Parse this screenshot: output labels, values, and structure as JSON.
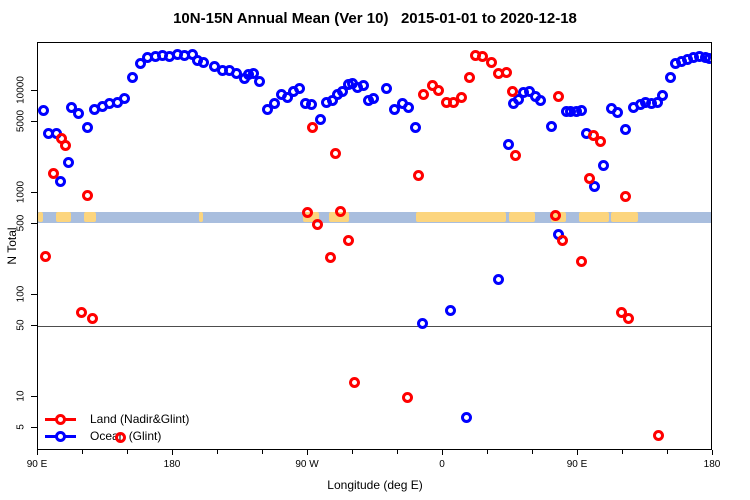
{
  "title": "10N-15N Annual Mean (Ver 10)   2015-01-01 to 2020-12-18",
  "chart_data": {
    "type": "scatter",
    "title": "10N-15N Annual Mean (Ver 10)   2015-01-01 to 2020-12-18",
    "x_axis": {
      "label": "Longitude (deg E)",
      "range_deg": [
        90,
        540
      ],
      "major_ticks": [
        {
          "deg": 90,
          "label": "90 E"
        },
        {
          "deg": 180,
          "label": "180"
        },
        {
          "deg": 270,
          "label": "90 W"
        },
        {
          "deg": 360,
          "label": "0"
        },
        {
          "deg": 450,
          "label": "90 E"
        },
        {
          "deg": 540,
          "label": "180"
        }
      ],
      "minor_tick_step_deg": 30
    },
    "y_axis": {
      "label": "N Total",
      "scale": "log",
      "ticks": [
        5,
        10,
        50,
        100,
        500,
        1000,
        5000,
        10000
      ],
      "range": [
        3,
        29500
      ]
    },
    "reference_line_y": 50,
    "map_band": {
      "description": "10N-15N latitude map strip",
      "value_range": [
        510,
        655
      ],
      "ocean_color": "#a9bede",
      "land_color": "#fcd57e",
      "land_patches_deg": [
        [
          90,
          93.3
        ],
        [
          102,
          112
        ],
        [
          120.7,
          128.7
        ],
        [
          197.3,
          200
        ],
        [
          266.7,
          277.3
        ],
        [
          284,
          297.3
        ],
        [
          342,
          402
        ],
        [
          404,
          421
        ],
        [
          432,
          442
        ],
        [
          450.7,
          470.7
        ],
        [
          472,
          490
        ]
      ]
    },
    "legend_position": "bottom-left",
    "series": [
      {
        "name": "Land (Nadir&Glint)",
        "color": "#ff0000",
        "points": [
          [
            94.7,
            240
          ],
          [
            100.2,
            1540
          ],
          [
            105.5,
            3450
          ],
          [
            108.5,
            2940
          ],
          [
            122.9,
            950
          ],
          [
            118.9,
            67
          ],
          [
            126.2,
            59
          ],
          [
            145.1,
            4
          ],
          [
            273.1,
            4400
          ],
          [
            288.2,
            2440
          ],
          [
            269.5,
            640
          ],
          [
            276.2,
            494
          ],
          [
            291.8,
            662
          ],
          [
            297.1,
            346
          ],
          [
            285.1,
            235
          ],
          [
            300.7,
            14
          ],
          [
            336.5,
            10
          ],
          [
            343.8,
            1500
          ],
          [
            347.1,
            9300
          ],
          [
            353.1,
            11400
          ],
          [
            357.1,
            10200
          ],
          [
            362.5,
            7800
          ],
          [
            367.1,
            7800
          ],
          [
            372,
            8600
          ],
          [
            377.5,
            13500
          ],
          [
            381.5,
            22500
          ],
          [
            386,
            22000
          ],
          [
            392,
            19000
          ],
          [
            397.1,
            15000
          ],
          [
            402,
            15300
          ],
          [
            406,
            9800
          ],
          [
            408.4,
            2350
          ],
          [
            434.7,
            605
          ],
          [
            437.1,
            8800
          ],
          [
            439.8,
            340
          ],
          [
            452.5,
            215
          ],
          [
            457.9,
            1390
          ],
          [
            460.4,
            3700
          ],
          [
            465.3,
            3200
          ],
          [
            478.7,
            67
          ],
          [
            481.5,
            930
          ],
          [
            483.5,
            59
          ],
          [
            503.8,
            4.2
          ]
        ]
      },
      {
        "name": "Ocean (Glint)",
        "color": "#0000ff",
        "points": [
          [
            93.5,
            6400
          ],
          [
            97.3,
            3850
          ],
          [
            102.2,
            3850
          ],
          [
            105.1,
            1300
          ],
          [
            110.2,
            1980
          ],
          [
            112.5,
            6900
          ],
          [
            116.9,
            6000
          ],
          [
            123.3,
            4400
          ],
          [
            127.8,
            6600
          ],
          [
            132.9,
            7100
          ],
          [
            137.8,
            7500
          ],
          [
            142.7,
            7800
          ],
          [
            147.8,
            8500
          ],
          [
            153.3,
            13500
          ],
          [
            158.2,
            18500
          ],
          [
            163.3,
            21500
          ],
          [
            168.2,
            22000
          ],
          [
            172.9,
            22500
          ],
          [
            177.8,
            22000
          ],
          [
            182.7,
            23000
          ],
          [
            187.8,
            22300
          ],
          [
            192.7,
            23000
          ],
          [
            196.2,
            20000
          ],
          [
            200.4,
            19000
          ],
          [
            207.5,
            17200
          ],
          [
            212.7,
            15700
          ],
          [
            217.5,
            15700
          ],
          [
            222.5,
            15000
          ],
          [
            227.5,
            13300
          ],
          [
            230.5,
            14600
          ],
          [
            233.8,
            14800
          ],
          [
            237.5,
            12500
          ],
          [
            242.7,
            6600
          ],
          [
            247.5,
            7500
          ],
          [
            252,
            9300
          ],
          [
            256,
            8600
          ],
          [
            260.4,
            9800
          ],
          [
            264.2,
            10500
          ],
          [
            268,
            7500
          ],
          [
            272,
            7400
          ],
          [
            278.2,
            5300
          ],
          [
            282,
            7800
          ],
          [
            286,
            8100
          ],
          [
            289.8,
            9300
          ],
          [
            293.1,
            10000
          ],
          [
            297.1,
            11500
          ],
          [
            299.8,
            11900
          ],
          [
            303.1,
            10800
          ],
          [
            306.9,
            11200
          ],
          [
            310.4,
            8100
          ],
          [
            313.8,
            8500
          ],
          [
            322,
            10500
          ],
          [
            327.5,
            6600
          ],
          [
            332.7,
            7500
          ],
          [
            337.1,
            6900
          ],
          [
            341.5,
            4400
          ],
          [
            346.2,
            53
          ],
          [
            364.7,
            71
          ],
          [
            375.5,
            6.4
          ],
          [
            396.9,
            142
          ],
          [
            403.8,
            3000
          ],
          [
            407.1,
            7500
          ],
          [
            410.5,
            8300
          ],
          [
            413.8,
            9700
          ],
          [
            417.5,
            9800
          ],
          [
            421.5,
            8800
          ],
          [
            425.3,
            8000
          ],
          [
            432,
            4500
          ],
          [
            437.3,
            390
          ],
          [
            442,
            6300
          ],
          [
            445.3,
            6300
          ],
          [
            448.7,
            6300
          ],
          [
            452,
            6400
          ],
          [
            455.8,
            3800
          ],
          [
            461.3,
            1170
          ],
          [
            466.9,
            1870
          ],
          [
            472,
            6800
          ],
          [
            476.5,
            6100
          ],
          [
            481.5,
            4200
          ],
          [
            487.1,
            6900
          ],
          [
            491.5,
            7300
          ],
          [
            495.3,
            7700
          ],
          [
            499.3,
            7500
          ],
          [
            502.7,
            7700
          ],
          [
            506.5,
            9000
          ],
          [
            511.5,
            13700
          ],
          [
            515.3,
            18500
          ],
          [
            519.3,
            19300
          ],
          [
            523.1,
            20500
          ],
          [
            527.1,
            21300
          ],
          [
            530.9,
            21600
          ],
          [
            534.9,
            21300
          ],
          [
            537.5,
            20800
          ]
        ]
      }
    ]
  }
}
